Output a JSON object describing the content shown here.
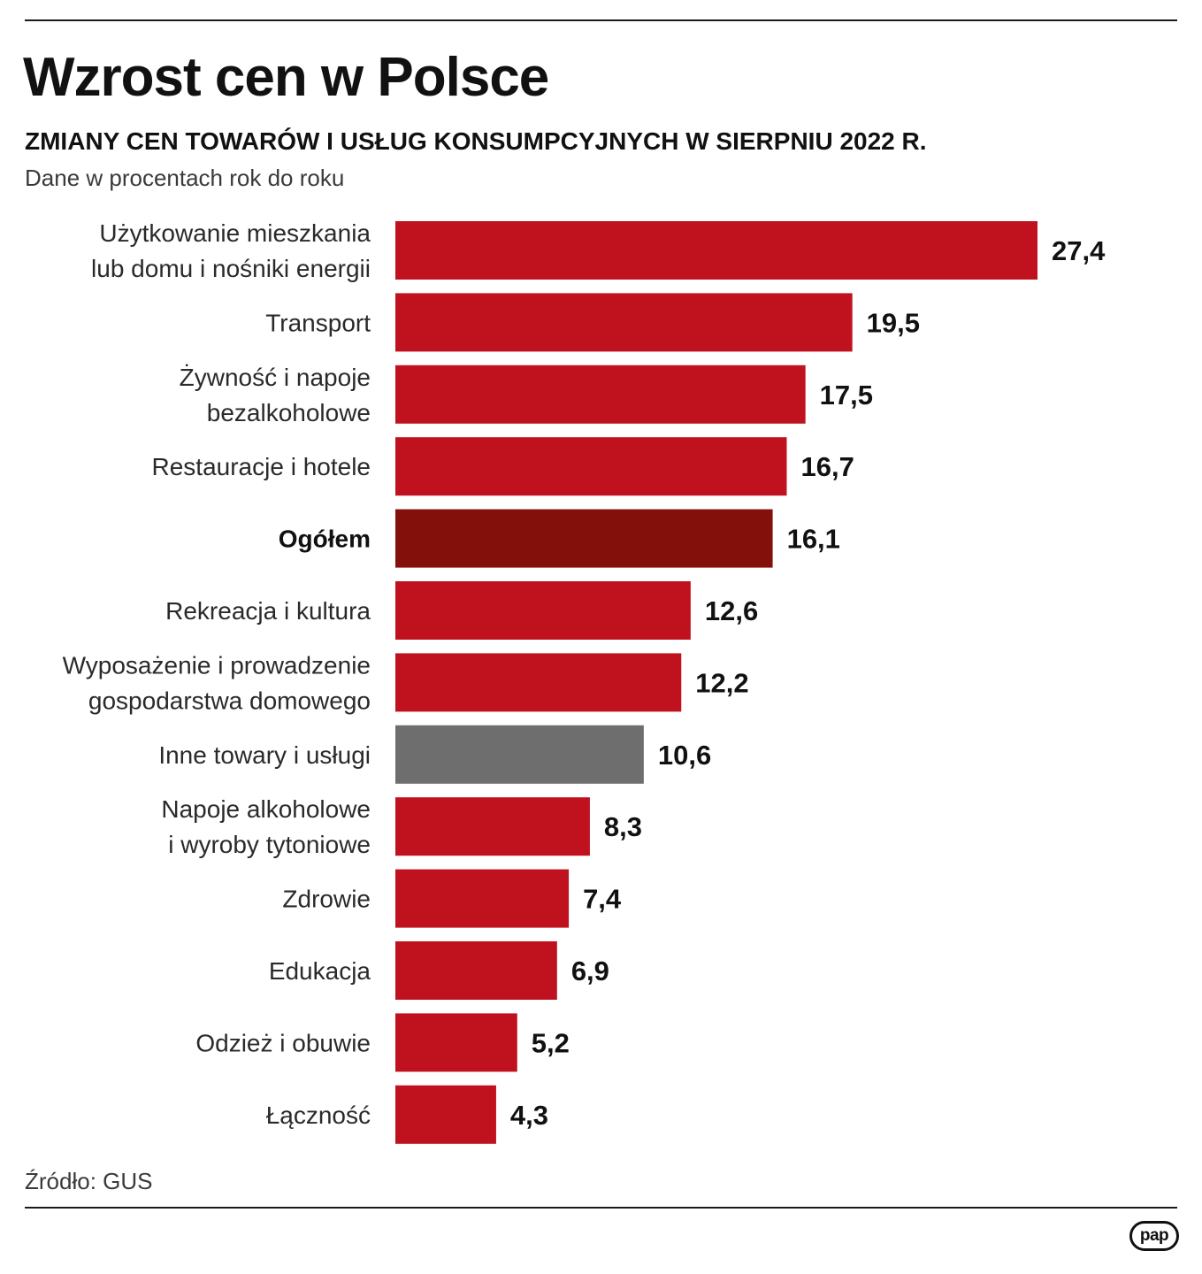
{
  "header": {
    "title": "Wzrost cen w Polsce",
    "subtitle": "ZMIANY CEN TOWARÓW I USŁUG KONSUMPCYJNYCH W SIERPNIU 2022 R.",
    "unit_note": "Dane w procentach rok do roku"
  },
  "footer": {
    "source": "Źródło: GUS",
    "logo_text": "pap"
  },
  "colors": {
    "bar": "#c0111f",
    "highlight": "#84100b",
    "other": "#6e6e6e",
    "label": "#2a2a2a",
    "value": "#111111"
  },
  "chart_data": {
    "type": "bar",
    "orientation": "horizontal",
    "title": "Wzrost cen w Polsce",
    "subtitle": "ZMIANY CEN TOWARÓW I USŁUG KONSUMPCYJNYCH W SIERPNIU 2022 R.",
    "xlim": [
      0,
      27.4
    ],
    "grid": false,
    "categories": [
      [
        "Użytkowanie mieszkania",
        "lub domu i nośniki energii"
      ],
      [
        "Transport"
      ],
      [
        "Żywność i napoje",
        "bezalkoholowe"
      ],
      [
        "Restauracje i hotele"
      ],
      [
        "Ogółem"
      ],
      [
        "Rekreacja i kultura"
      ],
      [
        "Wyposażenie i prowadzenie",
        "gospodarstwa domowego"
      ],
      [
        "Inne towary i usługi"
      ],
      [
        "Napoje alkoholowe",
        "i wyroby tytoniowe"
      ],
      [
        "Zdrowie"
      ],
      [
        "Edukacja"
      ],
      [
        "Odzież i obuwie"
      ],
      [
        "Łączność"
      ]
    ],
    "values": [
      27.4,
      19.5,
      17.5,
      16.7,
      16.1,
      12.6,
      12.2,
      10.6,
      8.3,
      7.4,
      6.9,
      5.2,
      4.3
    ],
    "value_labels": [
      "27,4",
      "19,5",
      "17,5",
      "16,7",
      "16,1",
      "12,6",
      "12,2",
      "10,6",
      "8,3",
      "7,4",
      "6,9",
      "5,2",
      "4,3"
    ],
    "bar_style": [
      "bar",
      "bar",
      "bar",
      "bar",
      "highlight",
      "bar",
      "bar",
      "other",
      "bar",
      "bar",
      "bar",
      "bar",
      "bar"
    ]
  }
}
